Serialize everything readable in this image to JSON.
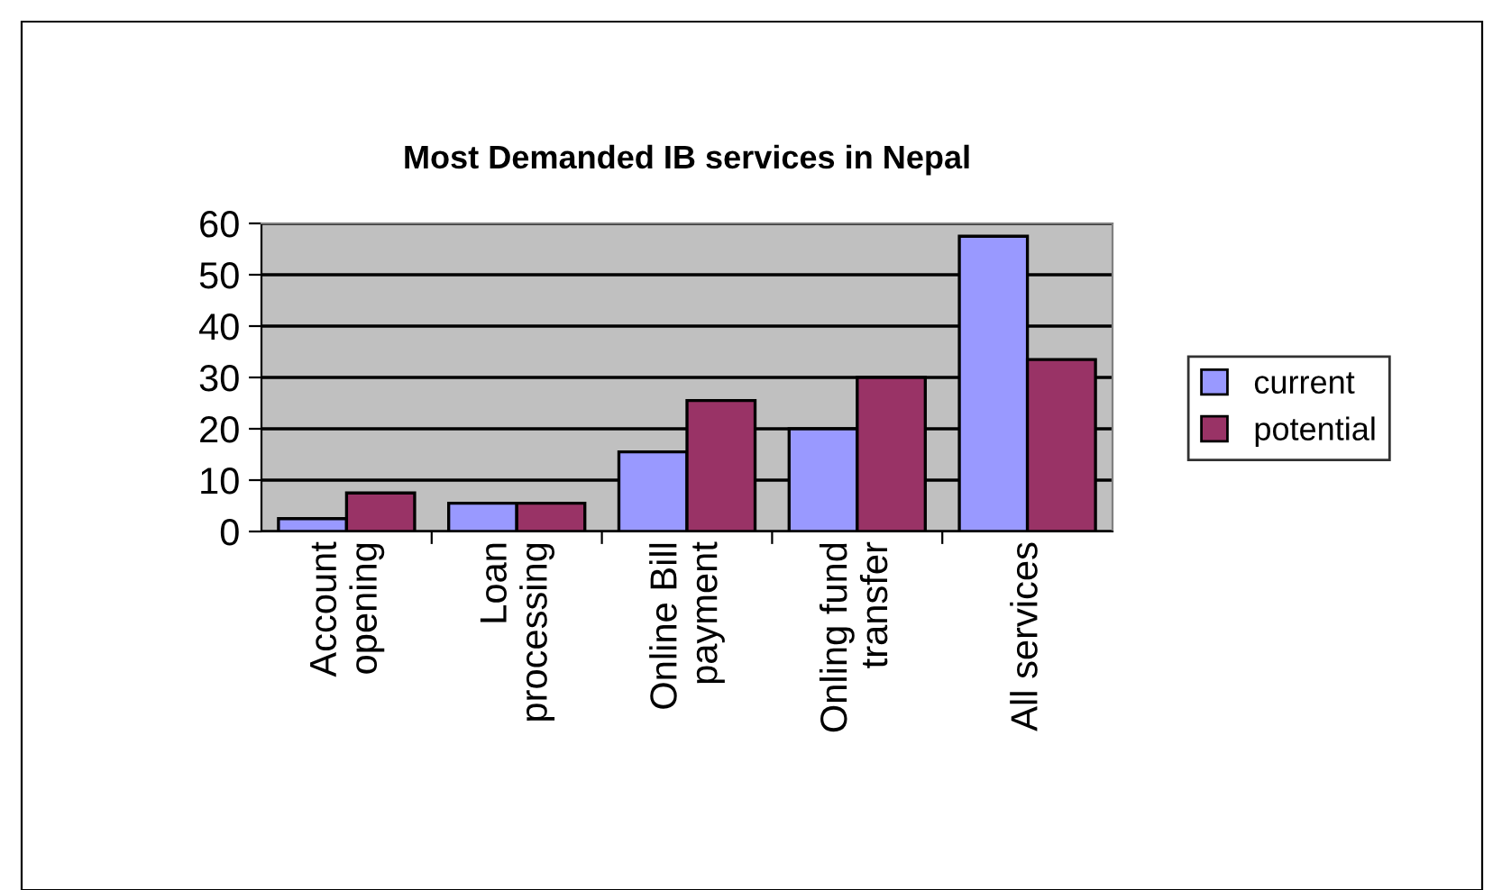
{
  "chart_data": {
    "type": "bar",
    "title": "Most Demanded IB services in Nepal",
    "categories": [
      "Account\nopening",
      "Loan\nprocessing",
      "Online Bill\npayment",
      "Onling fund\ntransfer",
      "All services"
    ],
    "series": [
      {
        "name": "current",
        "color": "#9999ff",
        "values": [
          2.5,
          5.5,
          15.5,
          20,
          57.5
        ]
      },
      {
        "name": "potential",
        "color": "#993366",
        "values": [
          7.5,
          5.5,
          25.5,
          30,
          33.5
        ]
      }
    ],
    "ylim": [
      0,
      60
    ],
    "yticks": [
      0,
      10,
      20,
      30,
      40,
      50,
      60
    ],
    "grid": "y",
    "legend": "right"
  }
}
